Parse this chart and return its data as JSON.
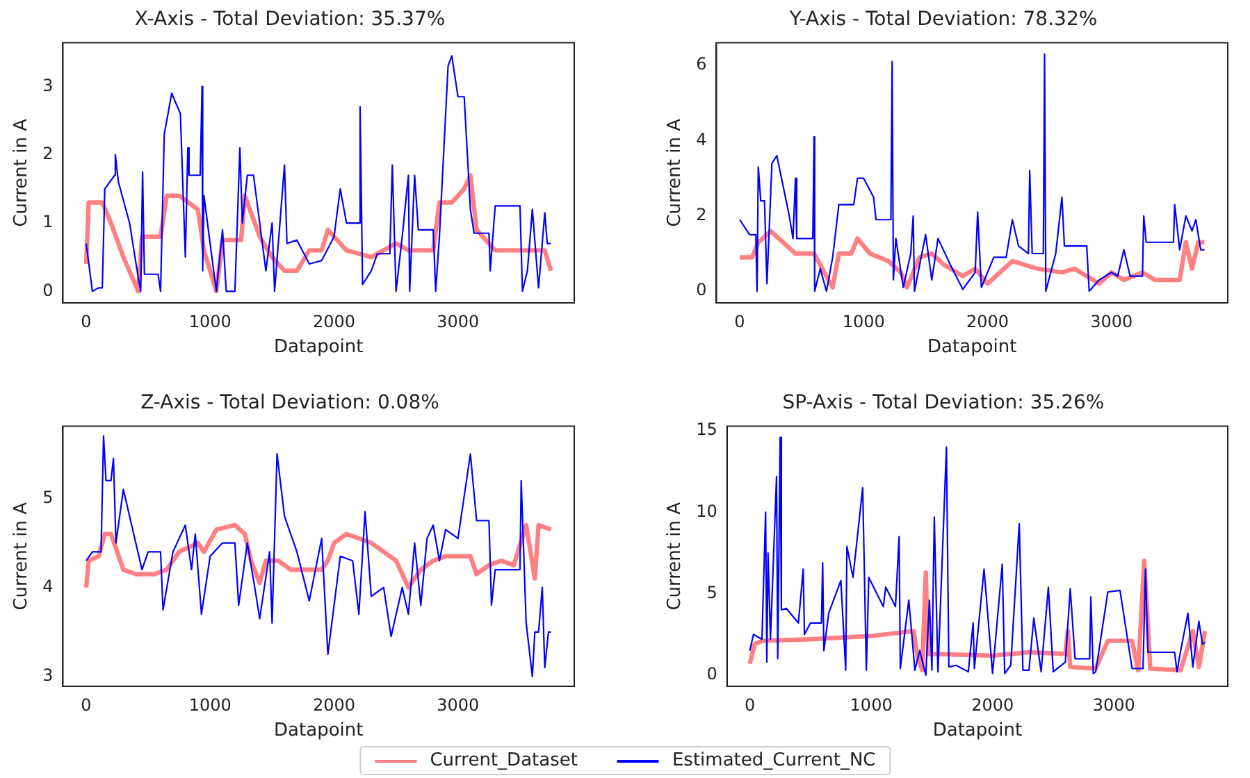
{
  "chart_data": [
    {
      "type": "line",
      "title": "X-Axis - Total Deviation: 35.37%",
      "xlabel": "Datapoint",
      "ylabel": "Current in A",
      "xlim": [
        -188,
        3938
      ],
      "xticks": [
        0,
        1000,
        2000,
        3000
      ],
      "ylim": [
        -0.17,
        3.64
      ],
      "yticks": [
        0,
        1,
        2,
        3
      ],
      "grid": false,
      "legend": "bottom",
      "marker": "none",
      "series": [
        {
          "name": "Current_Dataset",
          "color": "#ff8080",
          "x": [
            0,
            20,
            130,
            200,
            300,
            420,
            450,
            600,
            650,
            750,
            900,
            950,
            1050,
            1100,
            1250,
            1280,
            1400,
            1500,
            1600,
            1700,
            1800,
            1900,
            1950,
            2100,
            2300,
            2500,
            2600,
            2800,
            2850,
            2950,
            3050,
            3100,
            3150,
            3300,
            3500,
            3700,
            3750
          ],
          "values": [
            0.4,
            1.3,
            1.3,
            1.0,
            0.5,
            0.0,
            0.8,
            0.8,
            1.4,
            1.4,
            1.2,
            0.6,
            0.0,
            0.75,
            0.75,
            1.4,
            0.8,
            0.5,
            0.3,
            0.3,
            0.6,
            0.6,
            0.9,
            0.6,
            0.5,
            0.7,
            0.6,
            0.6,
            1.3,
            1.3,
            1.5,
            1.7,
            0.9,
            0.6,
            0.6,
            0.6,
            0.3
          ]
        },
        {
          "name": "Estimated_Current_NC",
          "color": "#0000ff",
          "x": [
            0,
            50,
            100,
            130,
            150,
            230,
            235,
            260,
            350,
            420,
            440,
            455,
            470,
            580,
            600,
            630,
            690,
            760,
            800,
            820,
            830,
            920,
            935,
            940,
            950,
            1000,
            1050,
            1100,
            1130,
            1200,
            1240,
            1260,
            1300,
            1350,
            1400,
            1450,
            1500,
            1520,
            1600,
            1620,
            1700,
            1800,
            1900,
            2000,
            2050,
            2100,
            2200,
            2210,
            2230,
            2300,
            2350,
            2450,
            2470,
            2500,
            2550,
            2600,
            2610,
            2650,
            2680,
            2800,
            2820,
            2850,
            2920,
            2950,
            3000,
            3050,
            3100,
            3130,
            3250,
            3260,
            3300,
            3500,
            3520,
            3560,
            3600,
            3650,
            3700,
            3720,
            3750
          ],
          "values": [
            0.7,
            0.0,
            0.05,
            0.05,
            1.5,
            1.7,
            2.0,
            1.6,
            1.0,
            0.2,
            0.0,
            1.75,
            0.25,
            0.25,
            0.0,
            2.3,
            2.9,
            2.6,
            0.5,
            2.1,
            1.7,
            1.7,
            3.0,
            0.3,
            1.4,
            0.7,
            0.0,
            0.9,
            0.0,
            0.0,
            2.1,
            1.0,
            1.7,
            1.7,
            1.0,
            0.3,
            1.0,
            0.0,
            1.85,
            0.7,
            0.75,
            0.4,
            0.45,
            0.8,
            1.5,
            1.0,
            1.0,
            2.7,
            0.1,
            0.3,
            0.55,
            0.55,
            1.85,
            0.0,
            0.8,
            1.7,
            0.0,
            1.7,
            0.9,
            0.9,
            0.0,
            0.8,
            3.3,
            3.45,
            2.85,
            2.85,
            1.2,
            0.85,
            0.85,
            0.3,
            1.25,
            1.25,
            0.0,
            0.3,
            1.2,
            0.05,
            1.15,
            0.7,
            0.7
          ]
        }
      ]
    },
    {
      "type": "line",
      "title": "Y-Axis - Total Deviation: 78.32%",
      "xlabel": "Datapoint",
      "ylabel": "Current in A",
      "xlim": [
        -188,
        3938
      ],
      "xticks": [
        0,
        1000,
        2000,
        3000
      ],
      "ylim": [
        -0.31,
        6.6
      ],
      "yticks": [
        0,
        2,
        4,
        6
      ],
      "grid": false,
      "legend": "bottom",
      "marker": "none",
      "series": [
        {
          "name": "Current_Dataset",
          "color": "#ff8080",
          "x": [
            0,
            100,
            150,
            250,
            350,
            450,
            600,
            650,
            750,
            800,
            900,
            950,
            1050,
            1200,
            1300,
            1350,
            1450,
            1550,
            1650,
            1800,
            1900,
            2000,
            2100,
            2200,
            2400,
            2600,
            2700,
            2800,
            2900,
            3000,
            3100,
            3250,
            3350,
            3550,
            3600,
            3650,
            3700,
            3750
          ],
          "values": [
            0.9,
            0.9,
            1.3,
            1.6,
            1.3,
            1.0,
            1.0,
            0.7,
            0.1,
            1.0,
            1.0,
            1.4,
            1.0,
            0.8,
            0.5,
            0.1,
            0.9,
            1.0,
            0.7,
            0.4,
            0.6,
            0.2,
            0.5,
            0.8,
            0.6,
            0.5,
            0.6,
            0.4,
            0.2,
            0.5,
            0.3,
            0.5,
            0.3,
            0.3,
            1.3,
            0.6,
            1.3,
            1.3
          ]
        },
        {
          "name": "Estimated_Current_NC",
          "color": "#0000ff",
          "x": [
            0,
            80,
            130,
            140,
            150,
            170,
            200,
            220,
            260,
            300,
            400,
            430,
            450,
            460,
            590,
            600,
            605,
            650,
            700,
            750,
            800,
            920,
            950,
            1000,
            1080,
            1100,
            1220,
            1230,
            1240,
            1260,
            1320,
            1380,
            1400,
            1410,
            1500,
            1550,
            1600,
            1700,
            1800,
            1900,
            1920,
            1950,
            2050,
            2150,
            2200,
            2250,
            2330,
            2340,
            2360,
            2450,
            2460,
            2470,
            2550,
            2600,
            2620,
            2800,
            2820,
            2900,
            3000,
            3050,
            3100,
            3150,
            3250,
            3260,
            3280,
            3500,
            3510,
            3550,
            3600,
            3650,
            3680,
            3720,
            3750
          ],
          "values": [
            1.9,
            1.5,
            1.5,
            0.0,
            3.3,
            2.4,
            2.4,
            0.2,
            3.4,
            3.6,
            2.0,
            1.4,
            3.0,
            1.4,
            1.4,
            4.1,
            0.0,
            0.6,
            0.0,
            0.9,
            2.3,
            2.3,
            3.0,
            3.0,
            2.5,
            1.9,
            1.9,
            6.1,
            0.3,
            1.4,
            0.1,
            1.0,
            2.0,
            0.0,
            1.5,
            0.3,
            1.4,
            0.7,
            0.05,
            0.5,
            2.1,
            0.1,
            0.9,
            0.9,
            1.9,
            1.2,
            1.0,
            3.2,
            1.0,
            1.0,
            6.3,
            0.0,
            1.0,
            2.5,
            1.2,
            1.2,
            0.0,
            0.3,
            0.5,
            0.4,
            1.1,
            0.4,
            0.4,
            2.0,
            1.3,
            1.3,
            2.3,
            1.1,
            2.0,
            1.6,
            1.9,
            1.1,
            1.1
          ]
        }
      ]
    },
    {
      "type": "line",
      "title": "Z-Axis - Total Deviation: 0.08%",
      "xlabel": "Datapoint",
      "ylabel": "Current in A",
      "xlim": [
        -188,
        3938
      ],
      "xticks": [
        0,
        1000,
        2000,
        3000
      ],
      "ylim": [
        2.89,
        5.81
      ],
      "yticks": [
        3,
        4,
        5
      ],
      "grid": false,
      "legend": "bottom",
      "marker": "none",
      "series": [
        {
          "name": "Current_Dataset",
          "color": "#ff8080",
          "x": [
            0,
            20,
            100,
            150,
            200,
            300,
            400,
            550,
            650,
            750,
            900,
            950,
            1050,
            1200,
            1280,
            1330,
            1400,
            1450,
            1550,
            1650,
            1900,
            1950,
            2000,
            2100,
            2300,
            2500,
            2600,
            2700,
            2800,
            2900,
            3100,
            3150,
            3250,
            3350,
            3450,
            3550,
            3620,
            3650,
            3750
          ],
          "values": [
            4.0,
            4.3,
            4.35,
            4.6,
            4.6,
            4.2,
            4.15,
            4.15,
            4.2,
            4.4,
            4.5,
            4.4,
            4.65,
            4.7,
            4.6,
            4.3,
            4.05,
            4.3,
            4.3,
            4.2,
            4.2,
            4.3,
            4.5,
            4.6,
            4.5,
            4.3,
            4.0,
            4.2,
            4.3,
            4.35,
            4.35,
            4.15,
            4.25,
            4.3,
            4.25,
            4.7,
            4.1,
            4.7,
            4.65
          ]
        },
        {
          "name": "Estimated_Current_NC",
          "color": "#0000ff",
          "x": [
            0,
            50,
            120,
            140,
            160,
            200,
            220,
            240,
            300,
            400,
            450,
            500,
            600,
            620,
            700,
            800,
            850,
            880,
            930,
            1000,
            1100,
            1200,
            1230,
            1300,
            1360,
            1400,
            1480,
            1500,
            1540,
            1600,
            1700,
            1800,
            1900,
            1950,
            2050,
            2150,
            2200,
            2250,
            2300,
            2400,
            2460,
            2550,
            2600,
            2650,
            2700,
            2750,
            2800,
            2850,
            2900,
            3000,
            3100,
            3150,
            3250,
            3270,
            3300,
            3500,
            3510,
            3550,
            3600,
            3620,
            3650,
            3680,
            3700,
            3730,
            3750
          ],
          "values": [
            4.3,
            4.4,
            4.4,
            5.7,
            5.2,
            5.2,
            5.45,
            4.5,
            5.1,
            4.5,
            4.2,
            4.4,
            4.4,
            3.75,
            4.4,
            4.7,
            4.2,
            4.6,
            3.7,
            4.35,
            4.5,
            4.5,
            3.8,
            4.5,
            4.0,
            3.65,
            4.4,
            3.6,
            5.5,
            4.8,
            4.4,
            3.85,
            4.55,
            3.25,
            4.35,
            4.3,
            3.7,
            4.85,
            3.9,
            4.0,
            3.45,
            4.0,
            3.7,
            4.5,
            3.8,
            4.55,
            4.7,
            4.3,
            4.65,
            4.55,
            5.5,
            4.75,
            4.75,
            3.8,
            4.2,
            4.2,
            5.2,
            3.6,
            3.0,
            3.5,
            3.5,
            4.0,
            3.1,
            3.5,
            3.5
          ]
        }
      ]
    },
    {
      "type": "line",
      "title": "SP-Axis - Total Deviation: 35.26%",
      "xlabel": "Datapoint",
      "ylabel": "Current in A",
      "xlim": [
        -188,
        3938
      ],
      "xticks": [
        0,
        1000,
        2000,
        3000
      ],
      "ylim": [
        -0.69,
        15.28
      ],
      "yticks": [
        0,
        5,
        10,
        15
      ],
      "grid": false,
      "legend": "bottom",
      "marker": "none",
      "series": [
        {
          "name": "Current_Dataset",
          "color": "#ff8080",
          "x": [
            0,
            40,
            100,
            500,
            1000,
            1350,
            1380,
            1420,
            1450,
            1470,
            2000,
            2300,
            2600,
            2620,
            2640,
            2850,
            2950,
            3150,
            3200,
            3250,
            3300,
            3550,
            3650,
            3700,
            3750
          ],
          "values": [
            0.7,
            1.9,
            2.1,
            2.2,
            2.4,
            2.7,
            1.2,
            0.3,
            6.3,
            1.3,
            1.2,
            1.4,
            1.3,
            2.7,
            0.5,
            0.4,
            2.1,
            2.1,
            0.3,
            7.0,
            0.4,
            0.3,
            2.7,
            0.5,
            2.7
          ]
        },
        {
          "name": "Estimated_Current_NC",
          "color": "#0000ff",
          "x": [
            0,
            30,
            100,
            130,
            140,
            150,
            170,
            220,
            230,
            250,
            260,
            300,
            400,
            440,
            450,
            500,
            590,
            600,
            610,
            650,
            750,
            790,
            800,
            850,
            930,
            960,
            980,
            1100,
            1120,
            1200,
            1230,
            1240,
            1310,
            1360,
            1400,
            1450,
            1480,
            1500,
            1520,
            1550,
            1620,
            1640,
            1700,
            1800,
            1840,
            1850,
            1930,
            2000,
            2080,
            2100,
            2150,
            2220,
            2250,
            2300,
            2340,
            2400,
            2460,
            2500,
            2600,
            2640,
            2680,
            2800,
            2810,
            2830,
            2850,
            2950,
            3050,
            3150,
            3240,
            3260,
            3280,
            3500,
            3520,
            3550,
            3610,
            3650,
            3700,
            3730,
            3750
          ],
          "values": [
            1.5,
            2.5,
            2.2,
            10.0,
            0.8,
            7.5,
            2.2,
            12.2,
            1.0,
            14.6,
            4.0,
            4.1,
            3.2,
            6.5,
            2.5,
            3.2,
            3.2,
            6.9,
            1.5,
            3.8,
            5.8,
            0.3,
            7.9,
            6.0,
            11.5,
            0.3,
            6.0,
            4.2,
            5.4,
            4.2,
            8.5,
            0.4,
            4.6,
            0.3,
            1.5,
            0.0,
            4.6,
            0.3,
            9.7,
            0.2,
            14.0,
            0.5,
            0.6,
            0.2,
            3.2,
            0.4,
            6.5,
            0.1,
            6.8,
            0.1,
            0.6,
            9.3,
            0.3,
            0.3,
            3.5,
            0.2,
            5.4,
            0.2,
            0.8,
            5.3,
            1.0,
            1.0,
            4.8,
            0.1,
            0.2,
            5.1,
            5.2,
            0.4,
            0.4,
            6.5,
            1.4,
            1.4,
            0.2,
            1.5,
            3.8,
            0.5,
            3.3,
            1.9,
            2.0
          ]
        }
      ]
    }
  ]
}
